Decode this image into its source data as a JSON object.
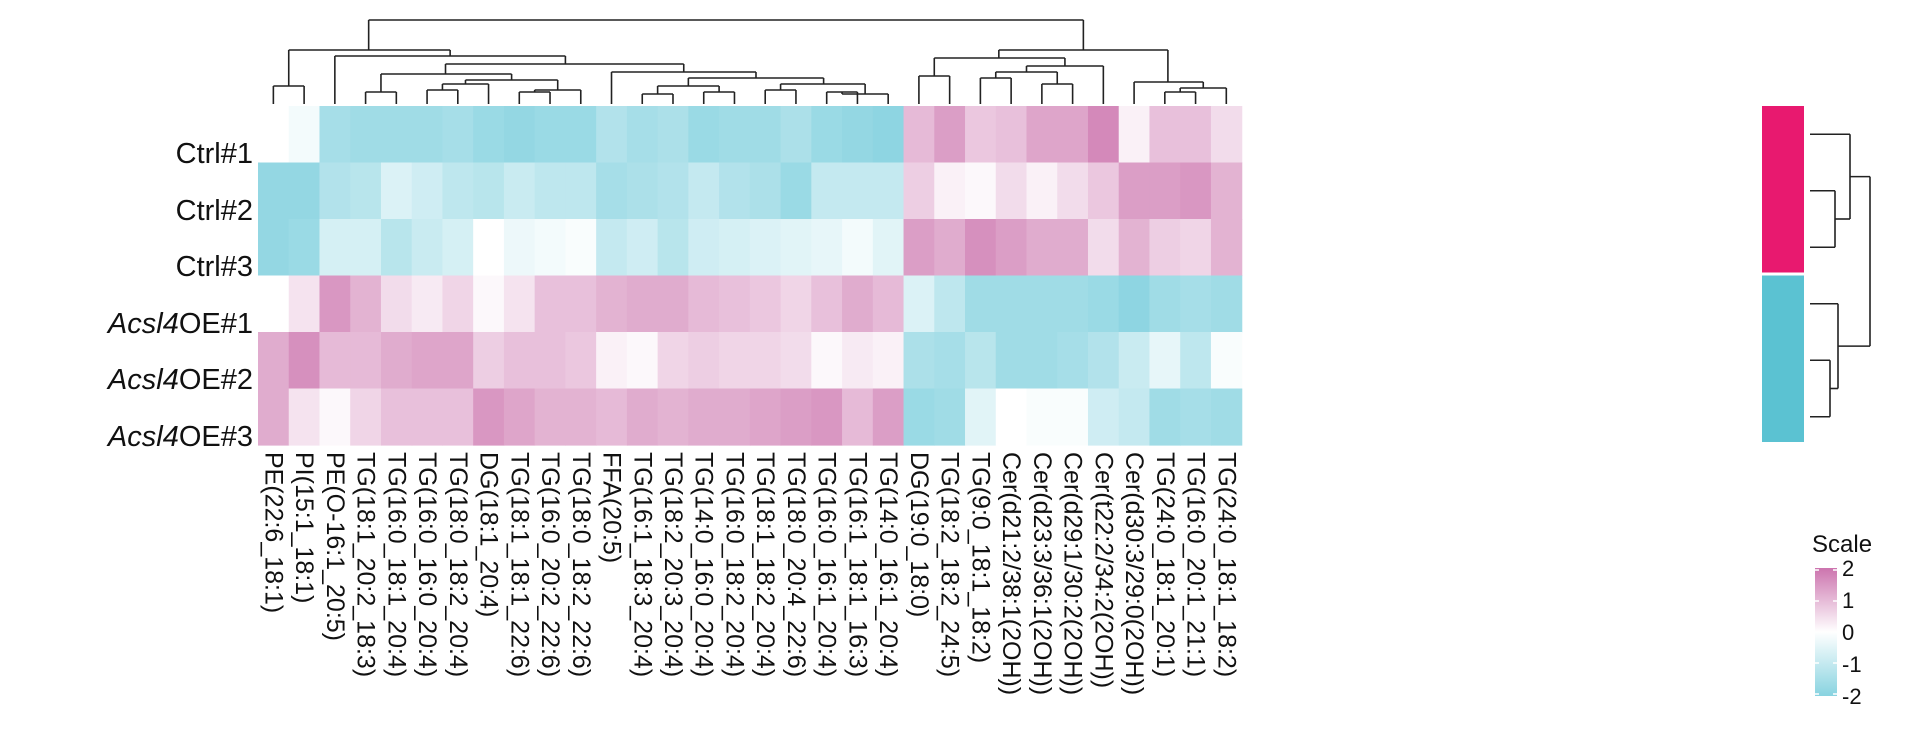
{
  "chart_data": {
    "type": "heatmap",
    "rows": [
      "Ctrl#1",
      "Ctrl#2",
      "Ctrl#3",
      "Acsl4OE#1",
      "Acsl4OE#2",
      "Acsl4OE#3"
    ],
    "row_label_parts": [
      [
        "",
        "Ctrl#1"
      ],
      [
        "",
        "Ctrl#2"
      ],
      [
        "",
        "Ctrl#3"
      ],
      [
        "Acsl4",
        "OE#1"
      ],
      [
        "Acsl4",
        "OE#2"
      ],
      [
        "Acsl4",
        "OE#3"
      ]
    ],
    "columns": [
      "PE(22:6_18:1)",
      "PI(15:1_18:1)",
      "PE(O-16:1_20:5)",
      "TG(18:1_20:2_18:3)",
      "TG(16:0_18:1_20:4)",
      "TG(16:0_16:0_20:4)",
      "TG(18:0_18:2_20:4)",
      "DG(18:1_20:4)",
      "TG(18:1_18:1_22:6)",
      "TG(16:0_20:2_22:6)",
      "TG(18:0_18:2_22:6)",
      "FFA(20:5)",
      "TG(16:1_18:3_20:4)",
      "TG(18:2_20:3_20:4)",
      "TG(14:0_16:0_20:4)",
      "TG(16:0_18:2_20:4)",
      "TG(18:1_18:2_20:4)",
      "TG(18:0_20:4_22:6)",
      "TG(16:0_16:1_20:4)",
      "TG(16:1_18:1_16:3)",
      "TG(14:0_16:1_20:4)",
      "DG(19:0_18:0)",
      "TG(18:2_18:2_24:5)",
      "TG(9:0_18:1_18:2)",
      "Cer(d21:2/38:1(2OH))",
      "Cer(d23:3/36:1(2OH))",
      "Cer(d29:1/30:2(2OH))",
      "Cer(t22:2/34:2(2OH))",
      "Cer(d30:3/29:0(2OH))",
      "TG(24:0_18:1_20:1)",
      "TG(16:0_20:1_21:1)",
      "TG(24:0_18:1_18:2)"
    ],
    "values": [
      [
        0.0,
        -0.2,
        -1.5,
        -1.6,
        -1.6,
        -1.6,
        -1.5,
        -1.7,
        -1.8,
        -1.7,
        -1.7,
        -1.3,
        -1.5,
        -1.4,
        -1.7,
        -1.6,
        -1.6,
        -1.4,
        -1.7,
        -1.8,
        -1.9,
        1.0,
        1.4,
        0.8,
        0.9,
        1.3,
        1.3,
        1.7,
        0.2,
        0.9,
        0.9,
        0.5
      ],
      [
        -1.8,
        -1.8,
        -1.3,
        -1.2,
        -0.6,
        -0.8,
        -1.1,
        -1.2,
        -0.9,
        -1.1,
        -1.1,
        -1.5,
        -1.4,
        -1.3,
        -1.0,
        -1.3,
        -1.4,
        -1.7,
        -1.0,
        -1.0,
        -1.0,
        0.7,
        0.2,
        0.1,
        0.5,
        0.2,
        0.5,
        0.8,
        1.4,
        1.4,
        1.5,
        1.1
      ],
      [
        -1.8,
        -1.7,
        -0.7,
        -0.7,
        -1.2,
        -0.9,
        -0.7,
        0.0,
        -0.3,
        -0.2,
        -0.1,
        -1.0,
        -0.8,
        -1.2,
        -0.8,
        -0.7,
        -0.6,
        -0.5,
        -0.4,
        -0.2,
        -0.5,
        1.4,
        1.2,
        1.6,
        1.4,
        1.2,
        1.2,
        0.5,
        1.1,
        0.7,
        0.6,
        1.1
      ],
      [
        0.0,
        0.4,
        1.5,
        1.1,
        0.5,
        0.3,
        0.6,
        0.1,
        0.4,
        0.9,
        0.9,
        1.1,
        1.2,
        1.2,
        1.0,
        0.9,
        0.8,
        0.6,
        0.9,
        1.2,
        1.0,
        -0.6,
        -1.1,
        -1.6,
        -1.6,
        -1.6,
        -1.6,
        -1.7,
        -1.9,
        -1.6,
        -1.5,
        -1.6
      ],
      [
        1.2,
        1.6,
        1.0,
        1.0,
        1.2,
        1.3,
        1.3,
        0.7,
        0.9,
        0.9,
        0.8,
        0.2,
        0.1,
        0.6,
        0.7,
        0.6,
        0.6,
        0.5,
        0.1,
        0.3,
        0.2,
        -1.4,
        -1.5,
        -1.2,
        -1.6,
        -1.6,
        -1.5,
        -1.3,
        -0.9,
        -0.4,
        -1.1,
        -0.1
      ],
      [
        1.2,
        0.4,
        0.1,
        0.6,
        0.9,
        0.9,
        0.9,
        1.5,
        1.3,
        1.1,
        1.1,
        1.0,
        1.2,
        1.1,
        1.2,
        1.2,
        1.3,
        1.4,
        1.5,
        1.0,
        1.4,
        -1.7,
        -1.6,
        -0.5,
        0.0,
        -0.1,
        -0.1,
        -0.8,
        -1.0,
        -1.6,
        -1.5,
        -1.6
      ]
    ],
    "row_groups": [
      {
        "rows": [
          0,
          1,
          2
        ],
        "color": "#e8196f"
      },
      {
        "rows": [
          3,
          4,
          5
        ],
        "color": "#5bc2d2"
      }
    ],
    "legend": {
      "title": "Scale",
      "range": [
        -2,
        2
      ],
      "ticks": [
        "2",
        "1",
        "0",
        "-1",
        "-2"
      ],
      "low_color": "#88d3e0",
      "mid_color": "#ffffff",
      "high_color": "#cc74ae",
      "placement": "bottom-right"
    },
    "row_dendrogram": true,
    "column_dendrogram": true,
    "grid": false
  }
}
